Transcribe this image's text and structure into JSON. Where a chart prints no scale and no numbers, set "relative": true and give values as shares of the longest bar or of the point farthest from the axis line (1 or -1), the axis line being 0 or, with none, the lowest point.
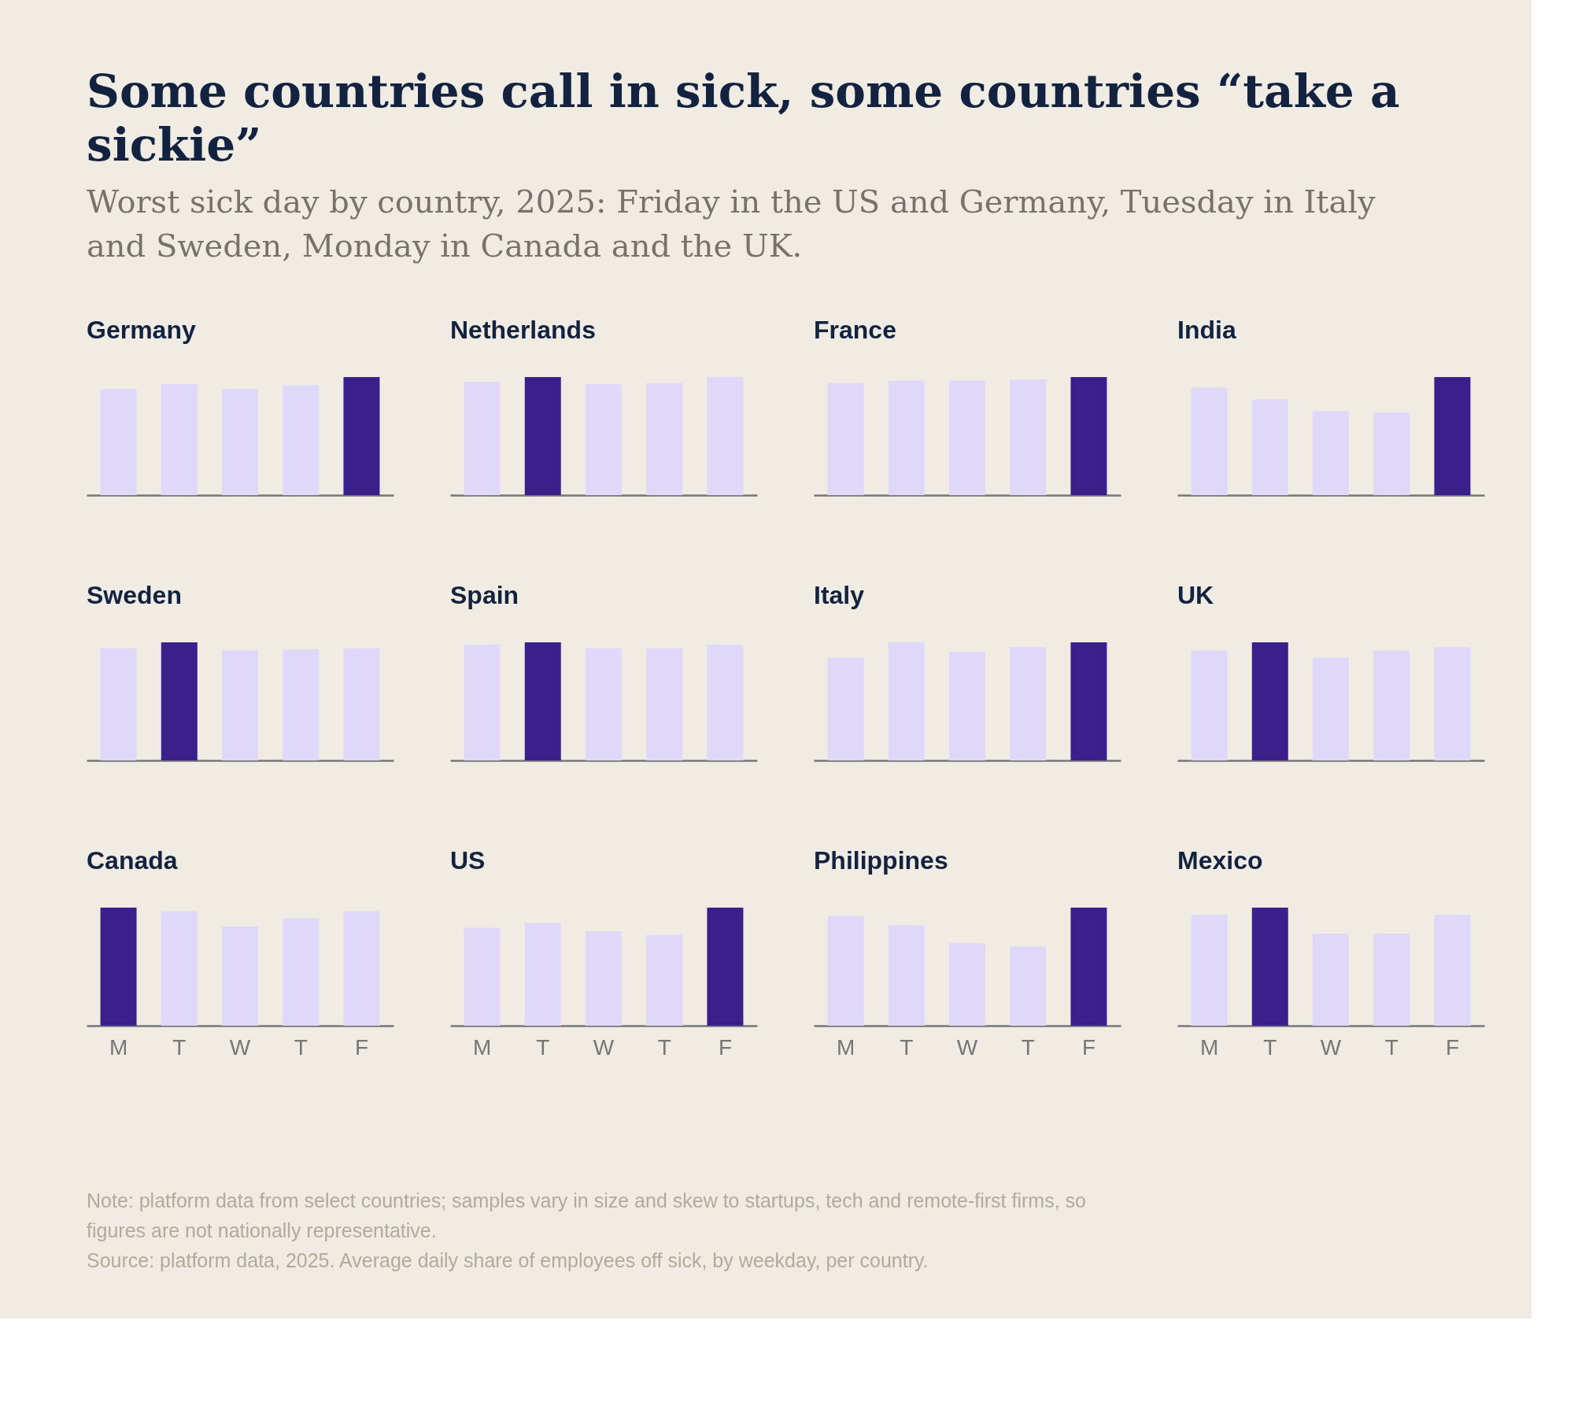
{
  "chart_data": [
    {
      "type": "bar",
      "title": "Germany",
      "relative": true,
      "categories": [
        null,
        null,
        null,
        null,
        null
      ],
      "values": [
        0.9,
        0.94,
        0.9,
        0.93,
        1
      ],
      "colors": [
        "#e0d8f8",
        "#e0d8f8",
        "#e0d8f8",
        "#e0d8f8",
        "#3b1f8a"
      ]
    },
    {
      "type": "bar",
      "title": "Netherlands",
      "relative": true,
      "categories": [
        null,
        null,
        null,
        null,
        null
      ],
      "values": [
        0.96,
        1,
        0.94,
        0.95,
        1
      ],
      "colors": [
        "#e0d8f8",
        "#3b1f8a",
        "#e0d8f8",
        "#e0d8f8",
        "#e0d8f8"
      ]
    },
    {
      "type": "bar",
      "title": "France",
      "relative": true,
      "categories": [
        null,
        null,
        null,
        null,
        null
      ],
      "values": [
        0.95,
        0.97,
        0.97,
        0.98,
        1
      ],
      "colors": [
        "#e0d8f8",
        "#e0d8f8",
        "#e0d8f8",
        "#e0d8f8",
        "#3b1f8a"
      ]
    },
    {
      "type": "bar",
      "title": "India",
      "relative": true,
      "categories": [
        null,
        null,
        null,
        null,
        null
      ],
      "values": [
        0.91,
        0.81,
        0.71,
        0.7,
        1
      ],
      "colors": [
        "#e0d8f8",
        "#e0d8f8",
        "#e0d8f8",
        "#e0d8f8",
        "#3b1f8a"
      ]
    },
    {
      "type": "bar",
      "title": "Sweden",
      "relative": true,
      "categories": [
        null,
        null,
        null,
        null,
        null
      ],
      "values": [
        0.95,
        1,
        0.93,
        0.94,
        0.95
      ],
      "colors": [
        "#e0d8f8",
        "#3b1f8a",
        "#e0d8f8",
        "#e0d8f8",
        "#e0d8f8"
      ]
    },
    {
      "type": "bar",
      "title": "Spain",
      "relative": true,
      "categories": [
        null,
        null,
        null,
        null,
        null
      ],
      "values": [
        0.98,
        1,
        0.95,
        0.95,
        0.98
      ],
      "colors": [
        "#e0d8f8",
        "#3b1f8a",
        "#e0d8f8",
        "#e0d8f8",
        "#e0d8f8"
      ]
    },
    {
      "type": "bar",
      "title": "Italy",
      "relative": true,
      "categories": [
        null,
        null,
        null,
        null,
        null
      ],
      "values": [
        0.87,
        1,
        0.92,
        0.96,
        1
      ],
      "colors": [
        "#e0d8f8",
        "#e0d8f8",
        "#e0d8f8",
        "#e0d8f8",
        "#3b1f8a"
      ]
    },
    {
      "type": "bar",
      "title": "UK",
      "relative": true,
      "categories": [
        null,
        null,
        null,
        null,
        null
      ],
      "values": [
        0.93,
        1,
        0.87,
        0.93,
        0.96
      ],
      "colors": [
        "#e0d8f8",
        "#3b1f8a",
        "#e0d8f8",
        "#e0d8f8",
        "#e0d8f8"
      ]
    },
    {
      "type": "bar",
      "title": "Canada",
      "relative": true,
      "categories": [
        "M",
        "T",
        "W",
        "T",
        "F"
      ],
      "values": [
        1,
        0.97,
        0.84,
        0.91,
        0.97
      ],
      "colors": [
        "#3b1f8a",
        "#e0d8f8",
        "#e0d8f8",
        "#e0d8f8",
        "#e0d8f8"
      ]
    },
    {
      "type": "bar",
      "title": "US",
      "relative": true,
      "categories": [
        "M",
        "T",
        "W",
        "T",
        "F"
      ],
      "values": [
        0.83,
        0.87,
        0.8,
        0.77,
        1
      ],
      "colors": [
        "#e0d8f8",
        "#e0d8f8",
        "#e0d8f8",
        "#e0d8f8",
        "#3b1f8a"
      ]
    },
    {
      "type": "bar",
      "title": "Philippines",
      "relative": true,
      "categories": [
        "M",
        "T",
        "W",
        "T",
        "F"
      ],
      "values": [
        0.93,
        0.85,
        0.7,
        0.67,
        1
      ],
      "colors": [
        "#e0d8f8",
        "#e0d8f8",
        "#e0d8f8",
        "#e0d8f8",
        "#3b1f8a"
      ]
    },
    {
      "type": "bar",
      "title": "Mexico",
      "relative": true,
      "categories": [
        "M",
        "T",
        "W",
        "T",
        "F"
      ],
      "values": [
        0.94,
        1,
        0.78,
        0.78,
        0.94
      ],
      "colors": [
        "#e0d8f8",
        "#3b1f8a",
        "#e0d8f8",
        "#e0d8f8",
        "#e0d8f8"
      ]
    },
    {
      "type": "other",
      "title": "Some countries call in sick, some countries “take a sickie”",
      "subtitle": "Worst sick day by country, 2025: Friday in the US and Germany, Tuesday in Italy and Sweden, Monday in Canada and the UK.",
      "annotations": [
        "Note: platform data from select countries; samples vary in size and skew to startups, tech and remote-first firms, so figures are not nationally representative.",
        "Source: platform data, 2025. Average daily share of employees off sick, by weekday, per country."
      ]
    }
  ]
}
